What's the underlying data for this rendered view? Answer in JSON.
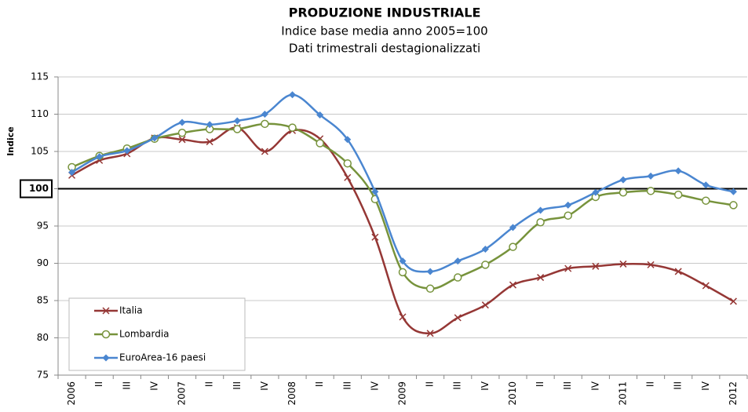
{
  "chart_data": {
    "type": "line",
    "title": "PRODUZIONE INDUSTRIALE",
    "subtitle": [
      "Indice base media anno 2005=100",
      "Dati trimestrali destagionalizzati"
    ],
    "y_label": "Indice",
    "categories": [
      "2006",
      "II",
      "III",
      "IV",
      "2007",
      "II",
      "III",
      "IV",
      "2008",
      "II",
      "III",
      "IV",
      "2009",
      "II",
      "III",
      "IV",
      "2010",
      "II",
      "III",
      "IV",
      "2011",
      "II",
      "III",
      "IV",
      "2012"
    ],
    "ylim": [
      75,
      115
    ],
    "yticks": [
      75,
      80,
      85,
      90,
      95,
      100,
      105,
      110,
      115
    ],
    "grid": true,
    "reference_line": 100,
    "legend_position": "lower left",
    "series": [
      {
        "name": "Italia",
        "color": "#953735",
        "marker": "x",
        "values": [
          101.8,
          103.8,
          104.7,
          106.8,
          106.6,
          106.3,
          108.2,
          105.0,
          107.8,
          106.7,
          101.5,
          93.5,
          82.8,
          80.6,
          82.7,
          84.4,
          87.1,
          88.1,
          89.3,
          89.6,
          89.9,
          89.8,
          88.9,
          87.0,
          84.9
        ]
      },
      {
        "name": "Lombardia",
        "color": "#77933c",
        "marker": "circle",
        "values": [
          102.9,
          104.4,
          105.4,
          106.7,
          107.5,
          108.0,
          108.0,
          108.7,
          108.2,
          106.1,
          103.4,
          98.6,
          88.8,
          86.6,
          88.1,
          89.8,
          92.2,
          95.5,
          96.4,
          98.9,
          99.5,
          99.7,
          99.2,
          98.4,
          97.8
        ]
      },
      {
        "name": "EuroArea-16 paesi",
        "color": "#4a86d0",
        "marker": "diamond",
        "values": [
          102.2,
          104.3,
          105.1,
          106.8,
          108.9,
          108.6,
          109.1,
          110.0,
          112.6,
          109.9,
          106.6,
          99.6,
          90.3,
          88.9,
          90.3,
          91.9,
          94.8,
          97.1,
          97.8,
          99.5,
          101.2,
          101.7,
          102.4,
          100.5,
          99.6
        ]
      }
    ]
  }
}
